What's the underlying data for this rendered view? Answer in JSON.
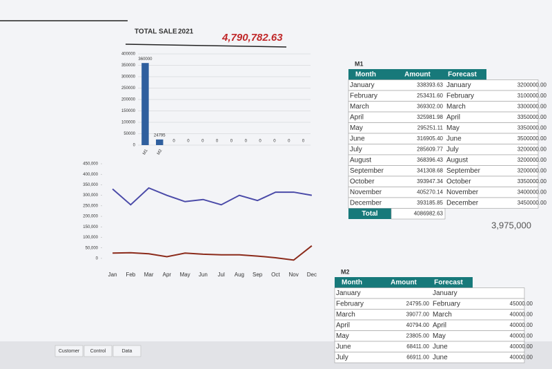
{
  "header": {
    "title": "TOTAL SALE",
    "year": "2021",
    "total": "4,790,782.63"
  },
  "chart_data": [
    {
      "type": "bar",
      "categories": [
        "M1",
        "M2",
        null,
        null,
        null,
        null,
        null,
        null,
        null,
        null,
        null,
        null
      ],
      "values": [
        360000,
        24795,
        0,
        0,
        0,
        0,
        0,
        0,
        0,
        0,
        0,
        0
      ],
      "color": "#2f5f9e",
      "ylim": [
        0,
        400000
      ],
      "yticks": [
        0,
        50000,
        100000,
        150000,
        200000,
        250000,
        300000,
        350000,
        400000
      ],
      "grid": true
    },
    {
      "type": "line",
      "categories": [
        "Jan",
        "Feb",
        "Mar",
        "Apr",
        "May",
        "Jun",
        "Jul",
        "Aug",
        "Sep",
        "Oct",
        "Nov",
        "Dec"
      ],
      "series": [
        {
          "color": "#4a4aa8",
          "values": [
            330000,
            255000,
            335000,
            300000,
            270000,
            280000,
            255000,
            300000,
            275000,
            315000,
            315000,
            300000
          ]
        },
        {
          "color": "#8b2a1a",
          "values": [
            25000,
            27000,
            22000,
            8000,
            25000,
            20000,
            17000,
            17000,
            11000,
            3000,
            -8000,
            60000
          ]
        }
      ],
      "ylim": [
        -20000,
        450000
      ],
      "yticks": [
        0,
        {
          "value": 50000,
          "label": "50,000"
        },
        {
          "value": 100000,
          "label": "100,000"
        },
        {
          "value": 150000,
          "label": "150,000"
        },
        {
          "value": 200000,
          "label": "200,000"
        },
        {
          "value": 250000,
          "label": "250,000"
        },
        {
          "value": 300000,
          "label": "300,000"
        },
        {
          "value": 350000,
          "label": "350,000"
        },
        {
          "value": 400000,
          "label": "400,000"
        },
        {
          "value": 450000,
          "label": "450,000"
        }
      ]
    }
  ],
  "tables": [
    {
      "label": "M1",
      "columns": [
        "Month",
        "Amount",
        "Forecast"
      ],
      "rows": [
        [
          "January",
          "338393.63",
          "January",
          "3200000.00"
        ],
        [
          "February",
          "253431.60",
          "February",
          "3100000.00"
        ],
        [
          "March",
          "369302.00",
          "March",
          "3300000.00"
        ],
        [
          "April",
          "325981.98",
          "April",
          "3350000.00"
        ],
        [
          "May",
          "295251.11",
          "May",
          "3350000.00"
        ],
        [
          "June",
          "316905.40",
          "June",
          "3500000.00"
        ],
        [
          "July",
          "285609.77",
          "July",
          "3200000.00"
        ],
        [
          "August",
          "368396.43",
          "August",
          "3200000.00"
        ],
        [
          "September",
          "341308.68",
          "September",
          "3200000.00"
        ],
        [
          "October",
          "393947.34",
          "October",
          "3350000.00"
        ],
        [
          "November",
          "405270.14",
          "November",
          "3400000.00"
        ],
        [
          "December",
          "393185.85",
          "December",
          "3450000.00"
        ]
      ],
      "total_label": "Total",
      "total": "4086982.63",
      "forecast_total": "3,975,000"
    },
    {
      "label": "M2",
      "columns": [
        "Month",
        "Amount",
        "Forecast"
      ],
      "rows": [
        [
          "January",
          null,
          "January",
          null
        ],
        [
          "February",
          "24795.00",
          "February",
          "45000.00"
        ],
        [
          "March",
          "39077.00",
          "March",
          "40000.00"
        ],
        [
          "April",
          "40794.00",
          "April",
          "40000.00"
        ],
        [
          "May",
          "23805.00",
          "May",
          "40000.00"
        ],
        [
          "June",
          "68411.00",
          "June",
          "40000.00"
        ],
        [
          "July",
          "66911.00",
          "June",
          "40000.00"
        ]
      ]
    }
  ],
  "sheet_tabs": [
    "Customer",
    "Control",
    "Data"
  ]
}
